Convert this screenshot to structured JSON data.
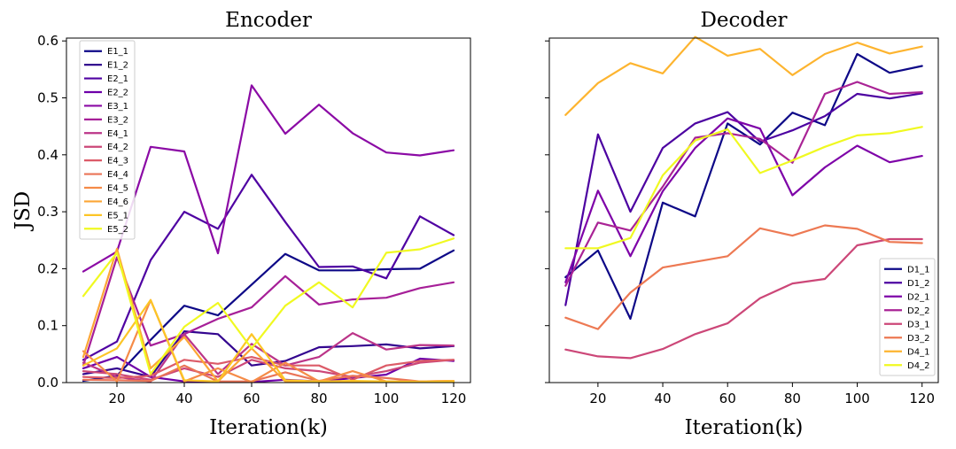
{
  "chart_data": [
    {
      "type": "line",
      "title": "Encoder",
      "xlabel": "Iteration(k)",
      "ylabel": "JSD",
      "x": [
        10,
        20,
        30,
        40,
        50,
        60,
        70,
        80,
        90,
        100,
        110,
        120
      ],
      "xticks": [
        20,
        40,
        60,
        80,
        100,
        120
      ],
      "xlim": [
        5,
        125
      ],
      "yticks": [
        0.0,
        0.1,
        0.2,
        0.3,
        0.4,
        0.5,
        0.6
      ],
      "ytick_labels": [
        "0.0",
        "0.1",
        "0.2",
        "0.3",
        "0.4",
        "0.5",
        "0.6"
      ],
      "ylim": [
        0.0,
        0.605
      ],
      "legend_position": "upper-left",
      "series": [
        {
          "name": "E1_1",
          "color": "#0d0887",
          "values": [
            0.003,
            0.012,
            0.075,
            0.135,
            0.118,
            0.172,
            0.226,
            0.197,
            0.197,
            0.199,
            0.2,
            0.232
          ]
        },
        {
          "name": "E1_2",
          "color": "#33058f",
          "values": [
            0.015,
            0.025,
            0.01,
            0.09,
            0.085,
            0.03,
            0.038,
            0.062,
            0.064,
            0.067,
            0.06,
            0.064
          ]
        },
        {
          "name": "E2_1",
          "color": "#4f02a2",
          "values": [
            0.04,
            0.072,
            0.215,
            0.3,
            0.27,
            0.365,
            0.282,
            0.203,
            0.204,
            0.183,
            0.292,
            0.259
          ]
        },
        {
          "name": "E2_2",
          "color": "#6e00a8",
          "values": [
            0.025,
            0.045,
            0.01,
            0.002,
            0.001,
            0.001,
            0.005,
            0.002,
            0.008,
            0.014,
            0.042,
            0.038
          ]
        },
        {
          "name": "E3_1",
          "color": "#8b0aa5",
          "values": [
            0.195,
            0.23,
            0.414,
            0.406,
            0.227,
            0.522,
            0.437,
            0.488,
            0.438,
            0.404,
            0.399,
            0.408
          ]
        },
        {
          "name": "E3_2",
          "color": "#a61f98",
          "values": [
            0.03,
            0.22,
            0.065,
            0.085,
            0.112,
            0.132,
            0.187,
            0.137,
            0.146,
            0.149,
            0.166,
            0.176
          ]
        },
        {
          "name": "E4_1",
          "color": "#bb3488",
          "values": [
            0.035,
            0.01,
            0.002,
            0.085,
            0.015,
            0.068,
            0.03,
            0.045,
            0.087,
            0.058,
            0.066,
            0.065
          ]
        },
        {
          "name": "E4_2",
          "color": "#cc4778",
          "values": [
            0.02,
            0.015,
            0.005,
            0.025,
            0.01,
            0.04,
            0.025,
            0.02,
            0.01,
            0.02,
            0.035,
            0.04
          ]
        },
        {
          "name": "E4_3",
          "color": "#dc5b68",
          "values": [
            0.01,
            0.008,
            0.012,
            0.04,
            0.033,
            0.045,
            0.03,
            0.03,
            0.005,
            0.03,
            0.038,
            0.04
          ]
        },
        {
          "name": "E4_4",
          "color": "#ea7457",
          "values": [
            0.005,
            0.004,
            0.003,
            0.03,
            0.002,
            0.002,
            0.018,
            0.003,
            0.012,
            0.008,
            0.002,
            0.003
          ]
        },
        {
          "name": "E4_5",
          "color": "#f58b47",
          "values": [
            0.055,
            0.002,
            0.145,
            0.002,
            0.025,
            0.001,
            0.035,
            0.002,
            0.02,
            0.002,
            0.002,
            0.002
          ]
        },
        {
          "name": "E4_6",
          "color": "#fca636",
          "values": [
            0.045,
            0.235,
            0.025,
            0.08,
            0.002,
            0.06,
            0.002,
            0.002,
            0.002,
            0.002,
            0.002,
            0.003
          ]
        },
        {
          "name": "E5_1",
          "color": "#fcc526",
          "values": [
            0.03,
            0.06,
            0.145,
            0.004,
            0.002,
            0.085,
            0.004,
            0.002,
            0.003,
            0.002,
            0.001,
            0.002
          ]
        },
        {
          "name": "E5_2",
          "color": "#f0f921",
          "values": [
            0.152,
            0.228,
            0.015,
            0.098,
            0.14,
            0.06,
            0.135,
            0.176,
            0.132,
            0.228,
            0.234,
            0.253
          ]
        }
      ]
    },
    {
      "type": "line",
      "title": "Decoder",
      "xlabel": "Iteration(k)",
      "x": [
        10,
        20,
        30,
        40,
        50,
        60,
        70,
        80,
        90,
        100,
        110,
        120
      ],
      "xticks": [
        20,
        40,
        60,
        80,
        100,
        120
      ],
      "xlim": [
        5,
        125
      ],
      "yticks": [
        0.0,
        0.1,
        0.2,
        0.3,
        0.4,
        0.5,
        0.6
      ],
      "ylim": [
        0.0,
        0.605
      ],
      "legend_position": "lower-right",
      "series": [
        {
          "name": "D1_1",
          "color": "#0d0887",
          "values": [
            0.185,
            0.232,
            0.112,
            0.316,
            0.292,
            0.455,
            0.418,
            0.474,
            0.452,
            0.577,
            0.544,
            0.556
          ]
        },
        {
          "name": "D1_2",
          "color": "#4c02a1",
          "values": [
            0.136,
            0.436,
            0.3,
            0.412,
            0.455,
            0.475,
            0.423,
            0.443,
            0.468,
            0.507,
            0.499,
            0.508
          ]
        },
        {
          "name": "D2_1",
          "color": "#7e03a8",
          "values": [
            0.176,
            0.337,
            0.222,
            0.336,
            0.412,
            0.464,
            0.446,
            0.329,
            0.378,
            0.416,
            0.387,
            0.398
          ]
        },
        {
          "name": "D2_2",
          "color": "#a92395",
          "values": [
            0.17,
            0.281,
            0.267,
            0.344,
            0.43,
            0.438,
            0.428,
            0.386,
            0.507,
            0.528,
            0.507,
            0.51
          ]
        },
        {
          "name": "D3_1",
          "color": "#cc4778",
          "values": [
            0.058,
            0.046,
            0.043,
            0.059,
            0.085,
            0.104,
            0.148,
            0.174,
            0.182,
            0.241,
            0.252,
            0.252
          ]
        },
        {
          "name": "D3_2",
          "color": "#ed7953",
          "values": [
            0.114,
            0.094,
            0.158,
            0.202,
            0.212,
            0.222,
            0.271,
            0.258,
            0.276,
            0.27,
            0.247,
            0.245
          ]
        },
        {
          "name": "D4_1",
          "color": "#fdb42f",
          "values": [
            0.47,
            0.526,
            0.561,
            0.543,
            0.607,
            0.574,
            0.586,
            0.54,
            0.577,
            0.597,
            0.578,
            0.59
          ]
        },
        {
          "name": "D4_2",
          "color": "#f0f921",
          "values": [
            0.236,
            0.236,
            0.254,
            0.364,
            0.425,
            0.445,
            0.368,
            0.39,
            0.414,
            0.434,
            0.438,
            0.449
          ]
        }
      ]
    }
  ]
}
